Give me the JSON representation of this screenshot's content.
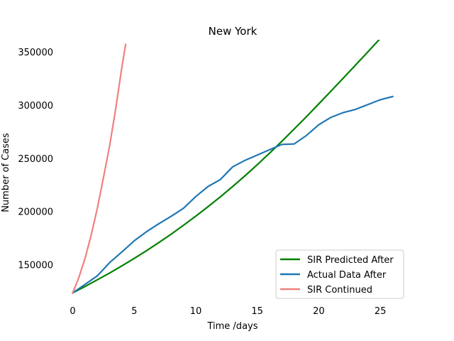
{
  "chart_data": {
    "type": "line",
    "title": "New York",
    "xlabel": "Time /days",
    "ylabel": "Number of Cases",
    "xlim": [
      -1.3,
      27.3
    ],
    "ylim": [
      117000,
      360000
    ],
    "x_ticks": [
      0,
      5,
      10,
      15,
      20,
      25
    ],
    "y_ticks": [
      150000,
      200000,
      250000,
      300000,
      350000
    ],
    "grid": false,
    "legend_position": "lower-right",
    "series": [
      {
        "name": "SIR Predicted After",
        "color": "#008000",
        "x": [
          0,
          1,
          2,
          3,
          4,
          5,
          6,
          7,
          8,
          9,
          10,
          11,
          12,
          13,
          14,
          15,
          16,
          17,
          18,
          19,
          20,
          21,
          22,
          23,
          24,
          25,
          26
        ],
        "y": [
          123500,
          129500,
          135800,
          142200,
          148900,
          155900,
          163200,
          170800,
          178700,
          187000,
          195600,
          204500,
          213800,
          223500,
          233500,
          244000,
          254800,
          266000,
          277500,
          289200,
          301100,
          313200,
          325400,
          337700,
          350100,
          362700,
          375300
        ]
      },
      {
        "name": "Actual Data After",
        "color": "#1f77b4",
        "x": [
          0,
          1,
          2,
          3,
          4,
          5,
          6,
          7,
          8,
          9,
          10,
          11,
          12,
          13,
          14,
          15,
          16,
          17,
          18,
          19,
          20,
          21,
          22,
          23,
          24,
          25,
          26
        ],
        "y": [
          123500,
          131500,
          139500,
          152000,
          162000,
          172500,
          181000,
          188500,
          195500,
          203000,
          214000,
          223500,
          230000,
          242000,
          248000,
          253000,
          258000,
          263000,
          263500,
          271500,
          281500,
          288500,
          293000,
          296000,
          300500,
          305000,
          308000
        ]
      },
      {
        "name": "SIR Continued",
        "color": "#f08080",
        "x": [
          0,
          0.5,
          1,
          1.5,
          2,
          2.5,
          3,
          3.5,
          4,
          4.3
        ],
        "y": [
          123500,
          138000,
          156000,
          178000,
          203000,
          232000,
          262000,
          297000,
          336000,
          357000
        ]
      }
    ]
  }
}
